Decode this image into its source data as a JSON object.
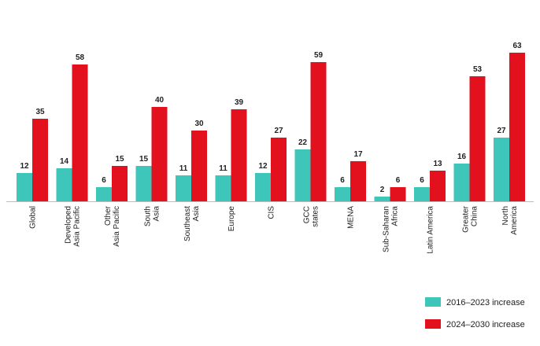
{
  "chart_data": {
    "type": "bar",
    "categories": [
      [
        "Global"
      ],
      [
        "Developed",
        "Asia Pacific"
      ],
      [
        "Other",
        "Asia Pacific"
      ],
      [
        "South",
        "Asia"
      ],
      [
        "Southeast",
        "Asia"
      ],
      [
        "Europe"
      ],
      [
        "CIS"
      ],
      [
        "GCC",
        "states"
      ],
      [
        "MENA"
      ],
      [
        "Sub-Saharan",
        "Africa"
      ],
      [
        "Latin America"
      ],
      [
        "Greater",
        "China"
      ],
      [
        "North",
        "America"
      ]
    ],
    "series": [
      {
        "name": "2016–2023 increase",
        "color": "#3fc6bb",
        "values": [
          12,
          14,
          6,
          15,
          11,
          11,
          12,
          22,
          6,
          2,
          6,
          16,
          27
        ]
      },
      {
        "name": "2024–2030 increase",
        "color": "#e3101e",
        "values": [
          35,
          58,
          15,
          40,
          30,
          39,
          27,
          59,
          17,
          6,
          13,
          53,
          63
        ]
      }
    ],
    "ylim": [
      0,
      63
    ],
    "grid": false,
    "legend_position": "bottom-right",
    "data_labels": true
  }
}
